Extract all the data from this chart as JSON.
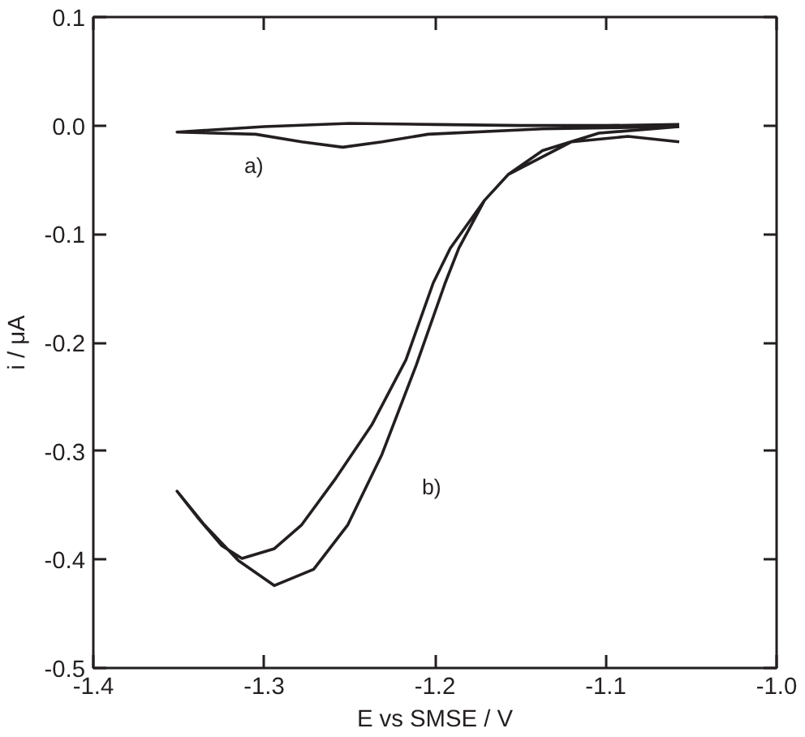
{
  "chart_data": {
    "type": "line",
    "xlabel": "E vs SMSE / V",
    "ylabel": "i / μA",
    "xlim": [
      -1.4,
      -1.0
    ],
    "ylim": [
      -0.5,
      0.1
    ],
    "xticks": [
      {
        "value": -1.4,
        "label": "-1.4"
      },
      {
        "value": -1.3,
        "label": "-1.3"
      },
      {
        "value": -1.2,
        "label": "-1.2"
      },
      {
        "value": -1.1,
        "label": "-1.1"
      },
      {
        "value": -1.0,
        "label": "-1.0"
      }
    ],
    "yticks": [
      {
        "value": -0.5,
        "label": "-0.5"
      },
      {
        "value": -0.4,
        "label": "-0.4"
      },
      {
        "value": -0.3,
        "label": "-0.3"
      },
      {
        "value": -0.2,
        "label": "-0.2"
      },
      {
        "value": -0.1,
        "label": "-0.1"
      },
      {
        "value": 0.0,
        "label": "0.0"
      },
      {
        "value": 0.1,
        "label": "0.1"
      }
    ],
    "grid": false,
    "marker": "none",
    "line_style": "solid",
    "series": [
      {
        "color": "#231f20",
        "x": [
          -1.057,
          -1.137,
          -1.204,
          -1.231,
          -1.254,
          -1.278,
          -1.305,
          -1.351,
          -1.3,
          -1.25,
          -1.2,
          -1.15,
          -1.1,
          -1.057
        ],
        "values": [
          -0.001,
          -0.003,
          -0.008,
          -0.015,
          -0.02,
          -0.015,
          -0.008,
          -0.006,
          -0.001,
          0.002,
          0.001,
          0.0,
          0.0,
          0.001
        ]
      },
      {
        "color": "#231f20",
        "x": [
          -1.057,
          -1.087,
          -1.12,
          -1.157,
          -1.171,
          -1.186,
          -1.194,
          -1.211,
          -1.231,
          -1.251,
          -1.271,
          -1.294,
          -1.315,
          -1.335,
          -1.351,
          -1.338,
          -1.325,
          -1.313,
          -1.294,
          -1.278,
          -1.258,
          -1.237,
          -1.217,
          -1.201,
          -1.191,
          -1.171,
          -1.157,
          -1.137,
          -1.104,
          -1.057
        ],
        "values": [
          -0.015,
          -0.01,
          -0.015,
          -0.045,
          -0.069,
          -0.113,
          -0.145,
          -0.221,
          -0.303,
          -0.368,
          -0.409,
          -0.424,
          -0.401,
          -0.368,
          -0.337,
          -0.363,
          -0.387,
          -0.399,
          -0.39,
          -0.368,
          -0.325,
          -0.276,
          -0.216,
          -0.145,
          -0.113,
          -0.069,
          -0.045,
          -0.023,
          -0.007,
          -0.001
        ]
      }
    ],
    "annotations": [
      "a)",
      "b)"
    ]
  }
}
